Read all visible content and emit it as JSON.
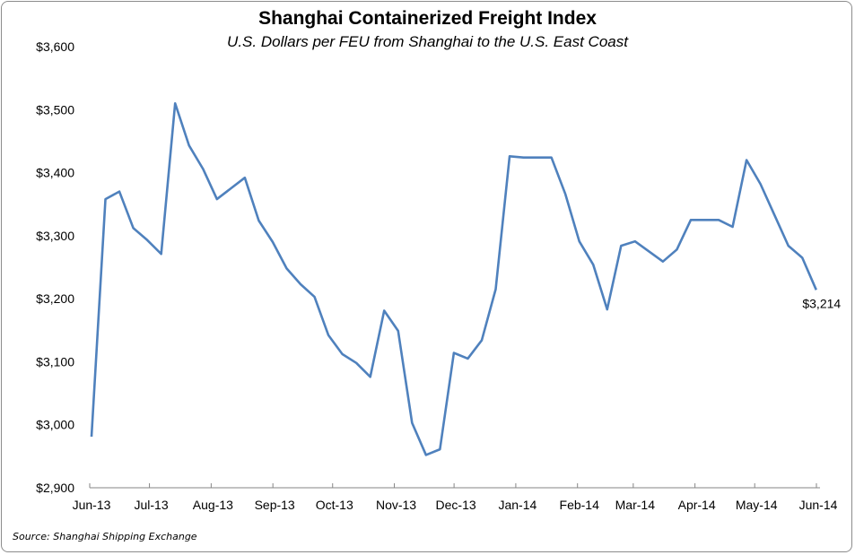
{
  "chart_data": {
    "type": "line",
    "title": "Shanghai Containerized Freight Index",
    "subtitle": "U.S. Dollars per FEU from Shanghai to the U.S. East Coast",
    "source": "Source: Shanghai Shipping Exchange",
    "xlabel": "",
    "ylabel": "",
    "ylim": [
      2900,
      3600
    ],
    "y_ticks": [
      "$2,900",
      "$3,000",
      "$3,100",
      "$3,200",
      "$3,300",
      "$3,400",
      "$3,500",
      "$3,600"
    ],
    "x_ticks": [
      "Jun-13",
      "Jul-13",
      "Aug-13",
      "Sep-13",
      "Oct-13",
      "Nov-13",
      "Dec-13",
      "Jan-14",
      "Feb-14",
      "Mar-14",
      "Apr-14",
      "May-14",
      "Jun-14"
    ],
    "x_tick_dates": [
      "2013-06-01",
      "2013-07-01",
      "2013-08-01",
      "2013-09-01",
      "2013-10-01",
      "2013-11-01",
      "2013-12-01",
      "2014-01-01",
      "2014-02-01",
      "2014-03-01",
      "2014-04-01",
      "2014-05-01",
      "2014-06-01"
    ],
    "grid": false,
    "legend": "none",
    "line_color": "#4f81bd",
    "x_start": "2013-06-01",
    "x_step_days": 7,
    "values": [
      2981,
      3358,
      3370,
      3312,
      3293,
      3271,
      3510,
      3443,
      3406,
      3358,
      3375,
      3392,
      3324,
      3290,
      3248,
      3223,
      3203,
      3142,
      3112,
      3098,
      3076,
      3181,
      3149,
      3003,
      2952,
      2961,
      3114,
      3105,
      3134,
      3215,
      3426,
      3424,
      3424,
      3424,
      3366,
      3291,
      3254,
      3183,
      3284,
      3291,
      3275,
      3259,
      3278,
      3325,
      3325,
      3325,
      3314,
      3420,
      3382,
      3333,
      3284,
      3265,
      3214
    ],
    "end_label": "$3,214"
  }
}
